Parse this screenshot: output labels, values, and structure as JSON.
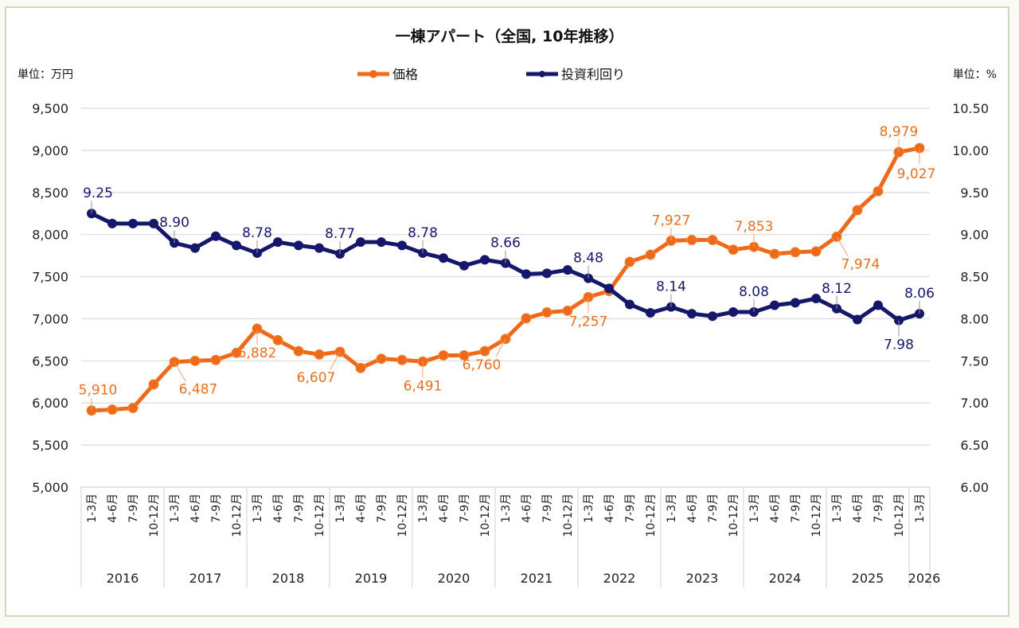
{
  "chart_data": {
    "type": "line",
    "title": "一棟アパート（全国, 10年推移）",
    "left_unit_label": "単位：万円",
    "right_unit_label": "単位：%",
    "legend_position": "top-center",
    "grid": true,
    "y_left": {
      "min": 5000,
      "max": 9500,
      "step": 500,
      "ticks": [
        "5,000",
        "5,500",
        "6,000",
        "6,500",
        "7,000",
        "7,500",
        "8,000",
        "8,500",
        "9,000",
        "9,500"
      ]
    },
    "y_right": {
      "min": 6.0,
      "max": 10.5,
      "step": 0.5,
      "ticks": [
        "6.00",
        "6.50",
        "7.00",
        "7.50",
        "8.00",
        "8.50",
        "9.00",
        "9.50",
        "10.00",
        "10.50"
      ]
    },
    "quarter_labels": [
      "1-3月",
      "4-6月",
      "7-9月",
      "10-12月"
    ],
    "years": [
      {
        "label": "2016",
        "quarters": 4
      },
      {
        "label": "2017",
        "quarters": 4
      },
      {
        "label": "2018",
        "quarters": 4
      },
      {
        "label": "2019",
        "quarters": 4
      },
      {
        "label": "2020",
        "quarters": 4
      },
      {
        "label": "2021",
        "quarters": 4
      },
      {
        "label": "2022",
        "quarters": 4
      },
      {
        "label": "2023",
        "quarters": 4
      },
      {
        "label": "2024",
        "quarters": 4
      },
      {
        "label": "2025",
        "quarters": 4
      },
      {
        "label": "2026",
        "quarters": 1
      }
    ],
    "series": [
      {
        "name": "価格",
        "axis": "left",
        "color": "#ee6a1a",
        "values": [
          5910,
          5920,
          5940,
          6220,
          6487,
          6500,
          6510,
          6595,
          6882,
          6745,
          6615,
          6575,
          6607,
          6415,
          6525,
          6510,
          6491,
          6565,
          6565,
          6615,
          6760,
          7005,
          7075,
          7095,
          7257,
          7330,
          7675,
          7760,
          7927,
          7935,
          7935,
          7820,
          7853,
          7770,
          7790,
          7800,
          7974,
          8290,
          8515,
          8979,
          9027
        ],
        "labels": [
          {
            "index": 0,
            "text": "5,910",
            "pos": "above"
          },
          {
            "index": 4,
            "text": "6,487",
            "pos": "below-right"
          },
          {
            "index": 8,
            "text": "6,882",
            "pos": "below"
          },
          {
            "index": 12,
            "text": "6,607",
            "pos": "below-left"
          },
          {
            "index": 16,
            "text": "6,491",
            "pos": "below"
          },
          {
            "index": 20,
            "text": "6,760",
            "pos": "below-left"
          },
          {
            "index": 24,
            "text": "7,257",
            "pos": "below"
          },
          {
            "index": 28,
            "text": "7,927",
            "pos": "above"
          },
          {
            "index": 32,
            "text": "7,853",
            "pos": "above"
          },
          {
            "index": 36,
            "text": "7,974",
            "pos": "below-right"
          },
          {
            "index": 39,
            "text": "8,979",
            "pos": "above"
          },
          {
            "index": 40,
            "text": "9,027",
            "pos": "below"
          }
        ]
      },
      {
        "name": "投資利回り",
        "axis": "right",
        "color": "#15176b",
        "values": [
          9.25,
          9.13,
          9.13,
          9.13,
          8.9,
          8.84,
          8.98,
          8.87,
          8.78,
          8.91,
          8.87,
          8.84,
          8.77,
          8.91,
          8.91,
          8.87,
          8.78,
          8.72,
          8.63,
          8.7,
          8.66,
          8.53,
          8.54,
          8.58,
          8.48,
          8.36,
          8.17,
          8.07,
          8.14,
          8.06,
          8.03,
          8.08,
          8.08,
          8.16,
          8.19,
          8.24,
          8.12,
          7.99,
          8.16,
          7.98,
          8.06
        ],
        "labels": [
          {
            "index": 0,
            "text": "9.25",
            "pos": "above"
          },
          {
            "index": 4,
            "text": "8.90",
            "pos": "above"
          },
          {
            "index": 8,
            "text": "8.78",
            "pos": "above"
          },
          {
            "index": 12,
            "text": "8.77",
            "pos": "above"
          },
          {
            "index": 16,
            "text": "8.78",
            "pos": "above"
          },
          {
            "index": 20,
            "text": "8.66",
            "pos": "above"
          },
          {
            "index": 24,
            "text": "8.48",
            "pos": "above"
          },
          {
            "index": 28,
            "text": "8.14",
            "pos": "above"
          },
          {
            "index": 32,
            "text": "8.08",
            "pos": "above"
          },
          {
            "index": 36,
            "text": "8.12",
            "pos": "above"
          },
          {
            "index": 39,
            "text": "7.98",
            "pos": "below"
          },
          {
            "index": 40,
            "text": "8.06",
            "pos": "above"
          }
        ]
      }
    ]
  }
}
